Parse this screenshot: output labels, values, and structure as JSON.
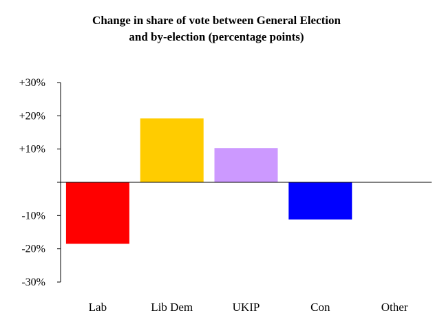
{
  "chart_data": {
    "type": "bar",
    "title": [
      "Change in share of vote between General Election",
      "and by-election (percentage points)"
    ],
    "categories": [
      "Lab",
      "Lib Dem",
      "UKIP",
      "Con",
      "Other"
    ],
    "values": [
      -18.5,
      19.2,
      10.3,
      -11.2,
      0
    ],
    "colors": [
      "#ff0000",
      "#ffcc00",
      "#cc99ff",
      "#0000ff",
      "#808080"
    ],
    "ylim": [
      -30,
      30
    ],
    "yticks": [
      30,
      20,
      10,
      0,
      -10,
      -20,
      -30
    ],
    "ytick_labels": [
      "+30%",
      "+20%",
      "+10%",
      "",
      "-10%",
      "-20%",
      "-30%"
    ],
    "grid": false,
    "legend": "none"
  }
}
